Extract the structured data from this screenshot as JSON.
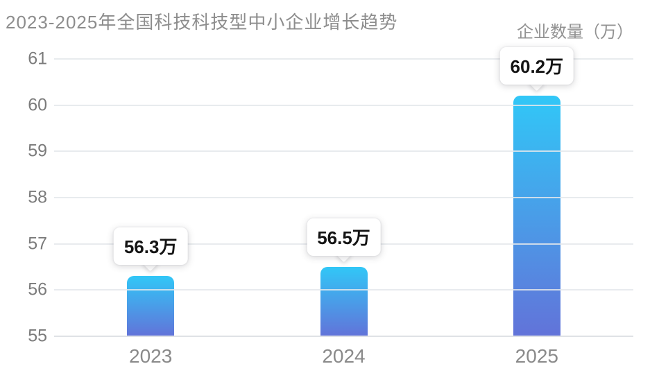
{
  "title": "2023-2025年全国科技科技型中小企业增长趋势",
  "unit_label": "企业数量（万）",
  "chart_data": {
    "type": "bar",
    "title": "2023-2025年全国科技科技型中小企业增长趋势",
    "ylabel": "企业数量（万）",
    "categories": [
      "2023",
      "2024",
      "2025"
    ],
    "values": [
      56.3,
      56.5,
      60.2
    ],
    "data_labels": [
      "56.3万",
      "56.5万",
      "60.2万"
    ],
    "ylim": [
      55,
      61
    ],
    "yticks": [
      55,
      56,
      57,
      58,
      59,
      60,
      61
    ],
    "grid": true,
    "legend": "none",
    "colors": {
      "bar_gradient_top": "#31C7F7",
      "bar_gradient_bottom": "#6273D9",
      "gridline": "#E4E7EB",
      "title_text": "#8D8D8D",
      "axis_tick_text": "#7B7B7B",
      "category_text": "#8A8A8A",
      "data_label_text": "#141414",
      "data_label_bg": "#FFFFFF",
      "background": "#FFFFFF"
    }
  }
}
